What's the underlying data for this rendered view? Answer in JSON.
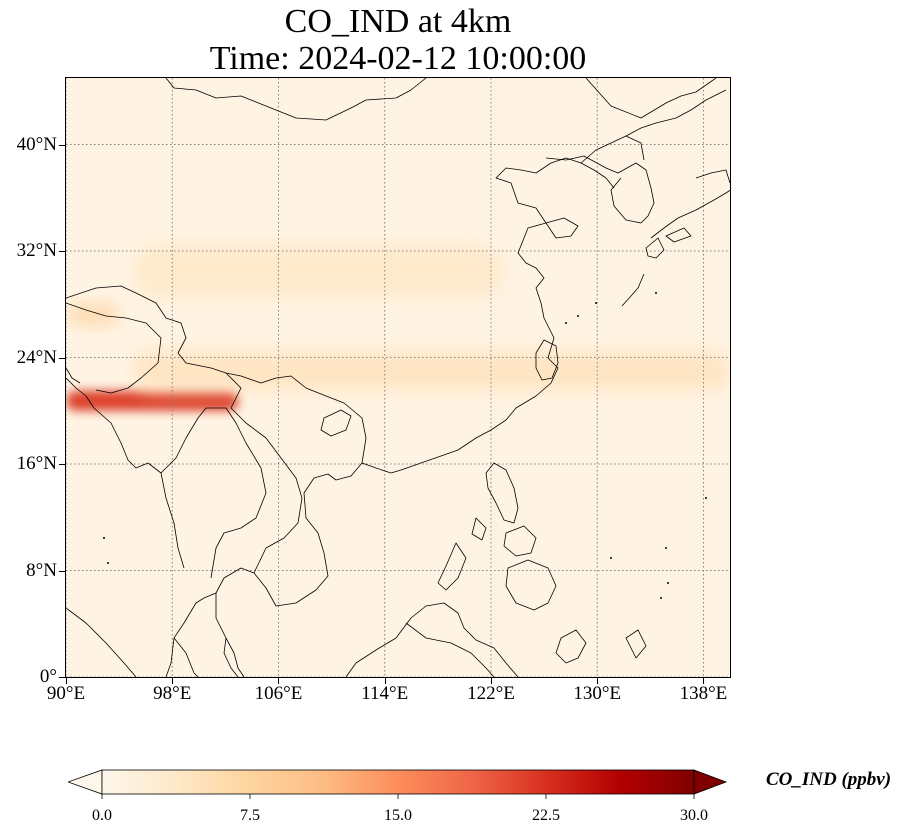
{
  "title": {
    "line1": "CO_IND at 4km",
    "line2": "Time: 2024-02-12 10:00:00"
  },
  "map": {
    "projection": "PlateCarree",
    "lon_range": [
      90,
      140
    ],
    "lat_range": [
      0,
      45
    ],
    "gridlines": true,
    "gridline_style": "dotted gray",
    "coastlines": true,
    "borders": true,
    "lat_ticks": [
      {
        "value": 0,
        "label": "0°"
      },
      {
        "value": 8,
        "label": "8°N"
      },
      {
        "value": 16,
        "label": "16°N"
      },
      {
        "value": 24,
        "label": "24°N"
      },
      {
        "value": 32,
        "label": "32°N"
      },
      {
        "value": 40,
        "label": "40°N"
      }
    ],
    "lon_ticks": [
      {
        "value": 90,
        "label": "90°E"
      },
      {
        "value": 98,
        "label": "98°E"
      },
      {
        "value": 106,
        "label": "106°E"
      },
      {
        "value": 114,
        "label": "114°E"
      },
      {
        "value": 122,
        "label": "122°E"
      },
      {
        "value": 130,
        "label": "130°E"
      },
      {
        "value": 138,
        "label": "138°E"
      }
    ],
    "field": {
      "variable": "CO_IND",
      "level": "4km",
      "units": "ppbv",
      "background_value": 0.8,
      "plumes": [
        {
          "name": "myanmar-plume-core",
          "lon": [
            90,
            103
          ],
          "lat": [
            20.0,
            21.5
          ],
          "value": 22
        },
        {
          "name": "indochina-transport-band",
          "lon": [
            95,
            140
          ],
          "lat": [
            21.5,
            24.5
          ],
          "value": 5
        },
        {
          "name": "sichuan-eastern-band",
          "lon": [
            95,
            123
          ],
          "lat": [
            28.5,
            32.5
          ],
          "value": 4
        },
        {
          "name": "tibet-west-plume",
          "lon": [
            90,
            94
          ],
          "lat": [
            26.5,
            28.0
          ],
          "value": 8
        }
      ]
    }
  },
  "colorbar": {
    "label": "CO_IND (ppbv)",
    "vmin": 0.0,
    "vmax": 30.0,
    "extend": "both",
    "cmap": "OrRd",
    "cmap_colors": [
      "#fff7ec",
      "#fee8c8",
      "#fdd49e",
      "#fdbb84",
      "#fc8d59",
      "#ef6548",
      "#d7301f",
      "#b30000",
      "#7f0000"
    ],
    "ticks": [
      {
        "value": 0.0,
        "label": "0.0"
      },
      {
        "value": 7.5,
        "label": "7.5"
      },
      {
        "value": 15.0,
        "label": "15.0"
      },
      {
        "value": 22.5,
        "label": "22.5"
      },
      {
        "value": 30.0,
        "label": "30.0"
      }
    ]
  }
}
